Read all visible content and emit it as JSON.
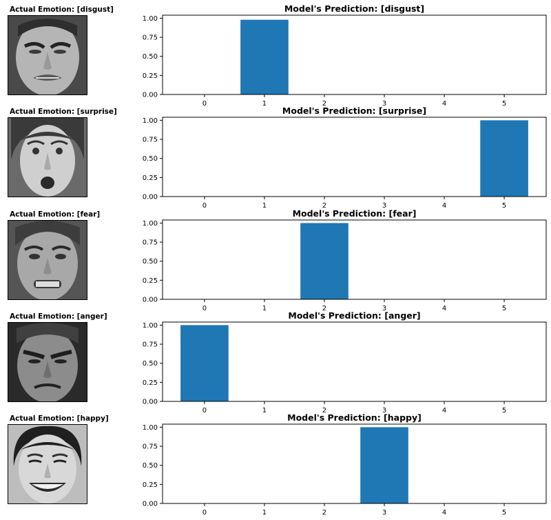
{
  "colors": {
    "bar": "#1f77b4",
    "axis": "#000000",
    "background": "#ffffff"
  },
  "rows": [
    {
      "actual_title": "Actual Emotion: [disgust]",
      "pred_title": "Model's Prediction: [disgust]",
      "face": "face-disgust"
    },
    {
      "actual_title": "Actual Emotion: [surprise]",
      "pred_title": "Model's Prediction: [surprise]",
      "face": "face-surprise"
    },
    {
      "actual_title": "Actual Emotion: [fear]",
      "pred_title": "Model's Prediction: [fear]",
      "face": "face-fear"
    },
    {
      "actual_title": "Actual Emotion: [anger]",
      "pred_title": "Model's Prediction: [anger]",
      "face": "face-anger"
    },
    {
      "actual_title": "Actual Emotion: [happy]",
      "pred_title": "Model's Prediction: [happy]",
      "face": "face-happy"
    }
  ],
  "chart_data": [
    {
      "type": "bar",
      "title": "Model's Prediction: [disgust]",
      "categories": [
        "0",
        "1",
        "2",
        "3",
        "4",
        "5"
      ],
      "values": [
        0,
        0.98,
        0,
        0,
        0,
        0
      ],
      "ylim": [
        0,
        1.04
      ],
      "yticks": [
        "0.00",
        "0.25",
        "0.50",
        "0.75",
        "1.00"
      ],
      "grid": false
    },
    {
      "type": "bar",
      "title": "Model's Prediction: [surprise]",
      "categories": [
        "0",
        "1",
        "2",
        "3",
        "4",
        "5"
      ],
      "values": [
        0,
        0,
        0,
        0,
        0,
        1.0
      ],
      "ylim": [
        0,
        1.04
      ],
      "yticks": [
        "0.00",
        "0.25",
        "0.50",
        "0.75",
        "1.00"
      ],
      "grid": false
    },
    {
      "type": "bar",
      "title": "Model's Prediction: [fear]",
      "categories": [
        "0",
        "1",
        "2",
        "3",
        "4",
        "5"
      ],
      "values": [
        0,
        0,
        1.0,
        0,
        0,
        0
      ],
      "ylim": [
        0,
        1.04
      ],
      "yticks": [
        "0.00",
        "0.25",
        "0.50",
        "0.75",
        "1.00"
      ],
      "grid": false
    },
    {
      "type": "bar",
      "title": "Model's Prediction: [anger]",
      "categories": [
        "0",
        "1",
        "2",
        "3",
        "4",
        "5"
      ],
      "values": [
        1.0,
        0,
        0,
        0,
        0,
        0
      ],
      "ylim": [
        0,
        1.04
      ],
      "yticks": [
        "0.00",
        "0.25",
        "0.50",
        "0.75",
        "1.00"
      ],
      "grid": false
    },
    {
      "type": "bar",
      "title": "Model's Prediction: [happy]",
      "categories": [
        "0",
        "1",
        "2",
        "3",
        "4",
        "5"
      ],
      "values": [
        0,
        0,
        0,
        1.0,
        0,
        0
      ],
      "ylim": [
        0,
        1.04
      ],
      "yticks": [
        "0.00",
        "0.25",
        "0.50",
        "0.75",
        "1.00"
      ],
      "grid": false
    }
  ]
}
